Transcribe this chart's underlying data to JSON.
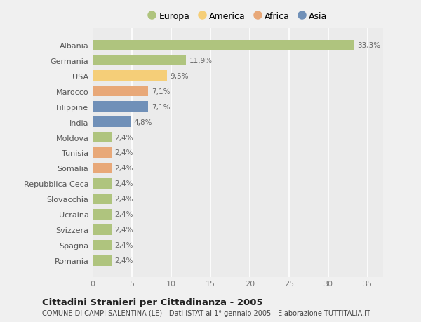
{
  "categories": [
    "Albania",
    "Germania",
    "USA",
    "Marocco",
    "Filippine",
    "India",
    "Moldova",
    "Tunisia",
    "Somalia",
    "Repubblica Ceca",
    "Slovacchia",
    "Ucraina",
    "Svizzera",
    "Spagna",
    "Romania"
  ],
  "values": [
    33.3,
    11.9,
    9.5,
    7.1,
    7.1,
    4.8,
    2.4,
    2.4,
    2.4,
    2.4,
    2.4,
    2.4,
    2.4,
    2.4,
    2.4
  ],
  "labels": [
    "33,3%",
    "11,9%",
    "9,5%",
    "7,1%",
    "7,1%",
    "4,8%",
    "2,4%",
    "2,4%",
    "2,4%",
    "2,4%",
    "2,4%",
    "2,4%",
    "2,4%",
    "2,4%",
    "2,4%"
  ],
  "colors": [
    "#afc47e",
    "#afc47e",
    "#f5ce78",
    "#e8a878",
    "#7090b8",
    "#7090b8",
    "#afc47e",
    "#e8a878",
    "#e8a878",
    "#afc47e",
    "#afc47e",
    "#afc47e",
    "#afc47e",
    "#afc47e",
    "#afc47e"
  ],
  "legend": [
    {
      "label": "Europa",
      "color": "#afc47e"
    },
    {
      "label": "America",
      "color": "#f5ce78"
    },
    {
      "label": "Africa",
      "color": "#e8a878"
    },
    {
      "label": "Asia",
      "color": "#7090b8"
    }
  ],
  "xlim": [
    0,
    37
  ],
  "xticks": [
    0,
    5,
    10,
    15,
    20,
    25,
    30,
    35
  ],
  "title": "Cittadini Stranieri per Cittadinanza - 2005",
  "subtitle": "COMUNE DI CAMPI SALENTINA (LE) - Dati ISTAT al 1° gennaio 2005 - Elaborazione TUTTITALIA.IT",
  "bg_color": "#f0f0f0",
  "plot_bg": "#ebebeb",
  "bar_height": 0.65,
  "grid_color": "#ffffff",
  "label_color": "#666666",
  "ytick_color": "#555555"
}
